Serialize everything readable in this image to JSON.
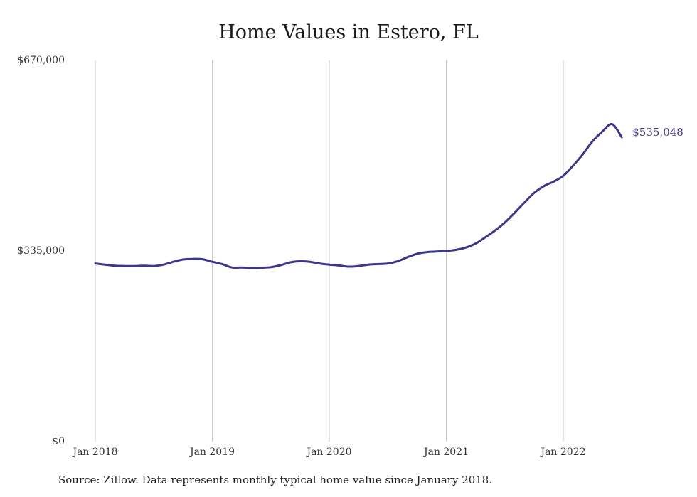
{
  "chart_data": {
    "type": "line",
    "title": "Home Values in Estero, FL",
    "xlabel": "",
    "ylabel": "",
    "ylim": [
      0,
      670000
    ],
    "y_ticks": [
      {
        "value": 0,
        "label": "$0"
      },
      {
        "value": 335000,
        "label": "$335,000"
      },
      {
        "value": 670000,
        "label": "$670,000"
      }
    ],
    "x_ticks": [
      {
        "value": "2018-01",
        "label": "Jan 2018"
      },
      {
        "value": "2019-01",
        "label": "Jan 2019"
      },
      {
        "value": "2020-01",
        "label": "Jan 2020"
      },
      {
        "value": "2021-01",
        "label": "Jan 2021"
      },
      {
        "value": "2022-01",
        "label": "Jan 2022"
      }
    ],
    "grid": {
      "vertical": true,
      "horizontal": false
    },
    "line_color": "#3a3596",
    "series": [
      {
        "x": [
          "2018-01",
          "2018-02",
          "2018-03",
          "2018-04",
          "2018-05",
          "2018-06",
          "2018-07",
          "2018-08",
          "2018-09",
          "2018-10",
          "2018-11",
          "2018-12",
          "2019-01",
          "2019-02",
          "2019-03",
          "2019-04",
          "2019-05",
          "2019-06",
          "2019-07",
          "2019-08",
          "2019-09",
          "2019-10",
          "2019-11",
          "2019-12",
          "2020-01",
          "2020-02",
          "2020-03",
          "2020-04",
          "2020-05",
          "2020-06",
          "2020-07",
          "2020-08",
          "2020-09",
          "2020-10",
          "2020-11",
          "2020-12",
          "2021-01",
          "2021-02",
          "2021-03",
          "2021-04",
          "2021-05",
          "2021-06",
          "2021-07",
          "2021-08",
          "2021-09",
          "2021-10",
          "2021-11",
          "2021-12",
          "2022-01",
          "2022-02",
          "2022-03",
          "2022-04",
          "2022-05",
          "2022-06",
          "2022-07"
        ],
        "values": [
          313000,
          311000,
          309000,
          308500,
          308500,
          309000,
          308500,
          311000,
          316000,
          320000,
          321000,
          320500,
          316000,
          312000,
          306000,
          306000,
          305000,
          305500,
          306500,
          310000,
          315000,
          317000,
          316000,
          313000,
          311000,
          309500,
          307500,
          308500,
          311000,
          312000,
          313000,
          317000,
          324000,
          330000,
          333000,
          334000,
          335000,
          337000,
          341000,
          348000,
          359000,
          371000,
          385000,
          402000,
          420000,
          437000,
          449000,
          457000,
          467000,
          485000,
          505000,
          528000,
          545000,
          558000,
          535048
        ]
      }
    ],
    "end_label": "$535,048"
  },
  "source_note": "Source: Zillow. Data represents monthly typical home value since January 2018."
}
